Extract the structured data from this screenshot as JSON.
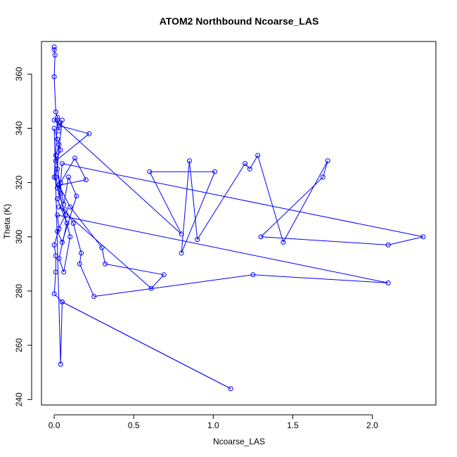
{
  "colors": {
    "series": "#0000ff",
    "axis": "#000000",
    "background": "#ffffff"
  },
  "chart_data": {
    "type": "line",
    "title": "ATOM2 Northbound Ncoarse_LAS",
    "xlabel": "Ncoarse_LAS",
    "ylabel": "Theta (K)",
    "xlim": [
      -0.08,
      2.4
    ],
    "ylim": [
      238,
      372
    ],
    "xticks": [
      0.0,
      0.5,
      1.0,
      1.5,
      2.0
    ],
    "xtick_labels": [
      "0.0",
      "0.5",
      "1.0",
      "1.5",
      "2.0"
    ],
    "yticks": [
      240,
      260,
      280,
      300,
      320,
      340,
      360
    ],
    "ytick_labels": [
      "240",
      "260",
      "280",
      "300",
      "320",
      "340",
      "360"
    ],
    "grid": false,
    "legend": "none",
    "marker": "open-circle",
    "points": [
      [
        0.0,
        370
      ],
      [
        0.0,
        369
      ],
      [
        0.005,
        367
      ],
      [
        0.0,
        359
      ],
      [
        0.01,
        346
      ],
      [
        0.02,
        344
      ],
      [
        0.0,
        343
      ],
      [
        0.03,
        342
      ],
      [
        0.8,
        301
      ],
      [
        0.6,
        324
      ],
      [
        1.01,
        324
      ],
      [
        0.8,
        294
      ],
      [
        0.85,
        328
      ],
      [
        0.9,
        299
      ],
      [
        1.2,
        327
      ],
      [
        1.23,
        325
      ],
      [
        1.28,
        330
      ],
      [
        1.44,
        298
      ],
      [
        1.72,
        328
      ],
      [
        1.69,
        322
      ],
      [
        1.3,
        300
      ],
      [
        2.1,
        297
      ],
      [
        2.32,
        300
      ],
      [
        0.05,
        327
      ],
      [
        0.04,
        320
      ],
      [
        0.02,
        318
      ],
      [
        0.13,
        329
      ],
      [
        0.2,
        321
      ],
      [
        0.03,
        319
      ],
      [
        0.1,
        311
      ],
      [
        0.3,
        296
      ],
      [
        0.32,
        290
      ],
      [
        0.69,
        286
      ],
      [
        0.61,
        281
      ],
      [
        0.03,
        311
      ],
      [
        0.07,
        310
      ],
      [
        0.12,
        305
      ],
      [
        0.17,
        294
      ],
      [
        0.16,
        290
      ],
      [
        0.25,
        278
      ],
      [
        1.25,
        286
      ],
      [
        2.1,
        283
      ],
      [
        0.02,
        308
      ],
      [
        0.03,
        303
      ],
      [
        0.0,
        297
      ],
      [
        0.01,
        293
      ],
      [
        0.01,
        287
      ],
      [
        0.0,
        279
      ],
      [
        0.05,
        276
      ],
      [
        1.11,
        244
      ],
      [
        0.05,
        276
      ],
      [
        0.04,
        253
      ],
      [
        0.0,
        340
      ],
      [
        0.02,
        336
      ],
      [
        0.04,
        332
      ],
      [
        0.01,
        328
      ],
      [
        0.22,
        338
      ],
      [
        0.03,
        341
      ],
      [
        0.05,
        343
      ],
      [
        0.01,
        322
      ],
      [
        0.1,
        300
      ],
      [
        0.06,
        287
      ],
      [
        0.03,
        292
      ],
      [
        0.08,
        305
      ],
      [
        0.02,
        314
      ],
      [
        0.04,
        316
      ],
      [
        0.01,
        330
      ],
      [
        0.03,
        334
      ],
      [
        0.02,
        325
      ],
      [
        0.06,
        312
      ],
      [
        0.09,
        322
      ],
      [
        0.14,
        315
      ],
      [
        0.05,
        298
      ],
      [
        0.02,
        302
      ],
      [
        0.07,
        308
      ],
      [
        0.0,
        322
      ],
      [
        0.02,
        343
      ],
      [
        0.03,
        339
      ]
    ]
  }
}
